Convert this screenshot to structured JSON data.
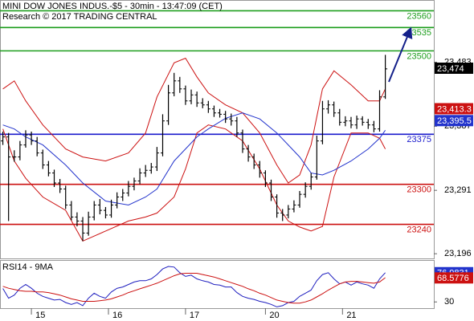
{
  "header": {
    "title": "MINI DOW JONES INDUS.-$5 - 30min - 13:47:09 (CET)",
    "subtitle": "Research © 2017 TRADING CENTRAL"
  },
  "chart_data": [
    {
      "type": "ohlc",
      "color": "#000000",
      "open": [
        23365,
        23371,
        23341,
        23341,
        23359,
        23374,
        23365,
        23347,
        23329,
        23317,
        23302,
        23293,
        23269,
        23251,
        23245,
        23227,
        23251,
        23269,
        23261,
        23254,
        23269,
        23281,
        23287,
        23297,
        23305,
        23317,
        23321,
        23326,
        23347,
        23395,
        23437,
        23455,
        23443,
        23425,
        23434,
        23422,
        23419,
        23413,
        23407,
        23405,
        23398,
        23395,
        23377,
        23353,
        23341,
        23329,
        23317,
        23302,
        23281,
        23257,
        23254,
        23263,
        23269,
        23285,
        23297,
        23311,
        23365,
        23413,
        23419,
        23407,
        23393,
        23395,
        23389,
        23398,
        23393,
        23389,
        23383,
        23431
      ],
      "high": [
        23379,
        23377,
        23351,
        23365,
        23381,
        23379,
        23371,
        23352,
        23335,
        23322,
        23308,
        23298,
        23275,
        23258,
        23251,
        23259,
        23275,
        23278,
        23266,
        23277,
        23288,
        23293,
        23305,
        23310,
        23324,
        23329,
        23332,
        23356,
        23405,
        23449,
        23467,
        23461,
        23448,
        23442,
        23439,
        23429,
        23425,
        23418,
        23413,
        23410,
        23406,
        23401,
        23382,
        23359,
        23346,
        23335,
        23321,
        23307,
        23285,
        23263,
        23269,
        23276,
        23290,
        23303,
        23317,
        23373,
        23425,
        23426,
        23424,
        23413,
        23402,
        23401,
        23403,
        23402,
        23398,
        23395,
        23441,
        23494
      ],
      "low": [
        23359,
        23245,
        23334,
        23336,
        23355,
        23359,
        23342,
        23323,
        23312,
        23296,
        23287,
        23263,
        23246,
        23237,
        23215,
        23223,
        23246,
        23255,
        23249,
        23250,
        23264,
        23275,
        23282,
        23291,
        23300,
        23311,
        23316,
        23320,
        23342,
        23389,
        23432,
        23437,
        23419,
        23420,
        23416,
        23414,
        23407,
        23401,
        23400,
        23392,
        23388,
        23371,
        23347,
        23334,
        23323,
        23310,
        23296,
        23275,
        23250,
        23245,
        23249,
        23258,
        23265,
        23280,
        23292,
        23307,
        23360,
        23406,
        23401,
        23388,
        23387,
        23384,
        23383,
        23388,
        23383,
        23378,
        23379,
        23428
      ],
      "close": [
        23371,
        23341,
        23341,
        23359,
        23374,
        23365,
        23347,
        23329,
        23317,
        23302,
        23293,
        23269,
        23251,
        23245,
        23227,
        23251,
        23269,
        23261,
        23254,
        23269,
        23281,
        23287,
        23297,
        23305,
        23317,
        23321,
        23326,
        23347,
        23395,
        23437,
        23455,
        23443,
        23425,
        23434,
        23422,
        23419,
        23413,
        23407,
        23405,
        23398,
        23395,
        23377,
        23353,
        23341,
        23329,
        23317,
        23302,
        23281,
        23257,
        23254,
        23263,
        23269,
        23285,
        23297,
        23311,
        23365,
        23413,
        23419,
        23407,
        23393,
        23395,
        23389,
        23398,
        23393,
        23389,
        23383,
        23431,
        23473
      ],
      "series": [
        {
          "color": "#cc1111",
          "x": [
            0,
            2,
            4,
            7,
            11,
            14,
            18,
            22,
            25,
            27,
            30,
            32,
            34,
            36,
            39,
            42,
            45,
            48,
            50,
            52,
            54,
            56,
            58,
            61,
            64,
            66,
            67
          ],
          "values": [
            23443,
            23455,
            23425,
            23389,
            23353,
            23341,
            23335,
            23347,
            23377,
            23431,
            23482,
            23489,
            23461,
            23437,
            23419,
            23407,
            23377,
            23329,
            23302,
            23314,
            23359,
            23443,
            23470,
            23449,
            23425,
            23425,
            23443
          ]
        },
        {
          "color": "#cc1111",
          "x": [
            0,
            2,
            4,
            7,
            11,
            14,
            18,
            22,
            25,
            27,
            30,
            32,
            34,
            36,
            39,
            42,
            45,
            48,
            50,
            52,
            54,
            56,
            58,
            61,
            64,
            66,
            67
          ],
          "values": [
            23383,
            23335,
            23309,
            23281,
            23261,
            23215,
            23230,
            23245,
            23251,
            23257,
            23281,
            23323,
            23377,
            23389,
            23383,
            23365,
            23323,
            23269,
            23245,
            23236,
            23230,
            23237,
            23311,
            23377,
            23377,
            23369,
            23353
          ]
        },
        {
          "color": "#2233cc",
          "x": [
            0,
            2,
            4,
            7,
            11,
            14,
            18,
            22,
            25,
            27,
            30,
            32,
            34,
            36,
            39,
            42,
            45,
            48,
            50,
            52,
            54,
            56,
            58,
            61,
            64,
            66,
            67
          ],
          "values": [
            23389,
            23383,
            23371,
            23359,
            23329,
            23302,
            23275,
            23269,
            23281,
            23293,
            23335,
            23353,
            23371,
            23383,
            23399,
            23407,
            23398,
            23377,
            23359,
            23341,
            23317,
            23314,
            23321,
            23335,
            23353,
            23369,
            23381
          ]
        }
      ],
      "levels": [
        {
          "value": 23560,
          "color": "#1e9e1e"
        },
        {
          "value": 23535,
          "color": "#1e9e1e"
        },
        {
          "value": 23500,
          "color": "#1e9e1e"
        },
        {
          "value": 23375,
          "color": "#1a1acc"
        },
        {
          "value": 23300,
          "color": "#cc1111"
        },
        {
          "value": 23240,
          "color": "#cc1111"
        }
      ],
      "markers": [
        {
          "value": 23474,
          "label": "23,474",
          "color": "#000000"
        },
        {
          "value": 23413.3,
          "label": "23,413.3",
          "color": "#cc1111"
        },
        {
          "value": 23395.5,
          "label": "23,395.5",
          "color": "#2233cc"
        }
      ],
      "xlim": [
        -0.5,
        75.5
      ],
      "xticks": [
        {
          "value": 5,
          "label": "15"
        },
        {
          "value": 18.5,
          "label": "16"
        },
        {
          "value": 32,
          "label": "17"
        },
        {
          "value": 46,
          "label": "20"
        },
        {
          "value": 59.5,
          "label": "21"
        }
      ],
      "ylim": [
        23189,
        23575
      ],
      "yticks": [
        {
          "value": 23483,
          "label": "23,483"
        },
        {
          "value": 23387,
          "label": "23,387"
        },
        {
          "value": 23291,
          "label": "23,291"
        },
        {
          "value": 23196,
          "label": "23,196"
        }
      ]
    },
    {
      "type": "line",
      "title": "RSI14 - 9MA",
      "series": [
        {
          "color": "#1f1fbf",
          "values": [
            51.6,
            36,
            41,
            52,
            58,
            52,
            44,
            39,
            36,
            33,
            34,
            29,
            26,
            29,
            24,
            36,
            44,
            39,
            36,
            46,
            52,
            54,
            58,
            62,
            64,
            64,
            67,
            74,
            83,
            87,
            86,
            77,
            71,
            73,
            67,
            64,
            62,
            58,
            57,
            54,
            54,
            45,
            39,
            36,
            34,
            31,
            29,
            26,
            22,
            24,
            29,
            31,
            39,
            44,
            49,
            64,
            74,
            77,
            67,
            59,
            62,
            57,
            62,
            59,
            57,
            52,
            67,
            77
          ]
        },
        {
          "color": "#cc1111",
          "values": [
            55,
            52,
            50,
            48,
            47,
            47,
            46,
            46,
            45,
            43,
            41,
            38,
            35,
            33,
            31,
            31,
            31,
            32,
            33,
            35,
            38,
            41,
            45,
            48,
            51,
            54,
            57,
            60,
            64,
            68,
            72,
            75,
            76,
            76,
            76,
            74,
            72,
            70,
            67,
            64,
            61,
            58,
            55,
            51,
            48,
            44,
            41,
            37,
            33,
            31,
            29,
            28,
            28,
            30,
            33,
            38,
            43,
            49,
            54,
            59,
            62,
            63,
            63,
            62,
            61,
            60,
            62,
            69
          ]
        }
      ],
      "markers": [
        {
          "value": 76.9831,
          "label": "76.9831",
          "color": "#2233cc"
        },
        {
          "value": 68.5776,
          "label": "68.5776",
          "color": "#cc1111"
        }
      ],
      "xlim": [
        -0.5,
        75.5
      ],
      "ylim": [
        20,
        96
      ],
      "yticks": [
        30
      ]
    }
  ]
}
